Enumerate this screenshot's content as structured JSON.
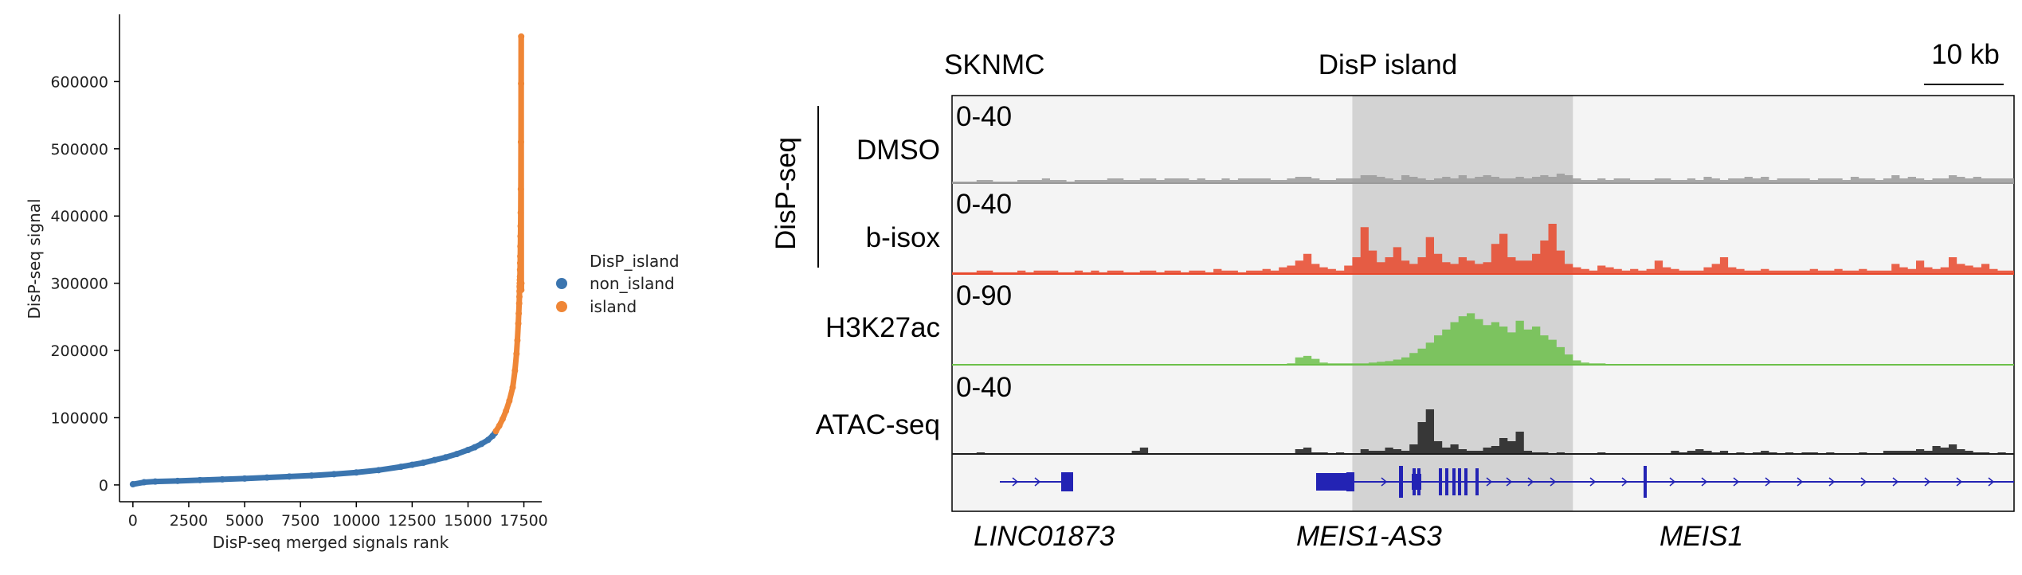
{
  "colors": {
    "non_island": "#3b75af",
    "island": "#ef8636",
    "dmso": "#9a9a9a",
    "bisox": "#e8472a",
    "h3k27ac": "#6cc04a",
    "atac": "#1b1b1b",
    "gene": "#2323b4",
    "island_shade": "#d3d3d3",
    "panel_bg": "#f4f4f4"
  },
  "chart_data": [
    {
      "type": "scatter",
      "xlabel": "DisP-seq merged signals rank",
      "ylabel": "DisP-seq signal",
      "xlim": [
        -600,
        18300
      ],
      "ylim": [
        -25000,
        700000
      ],
      "xticks": [
        0,
        2500,
        5000,
        7500,
        10000,
        12500,
        15000,
        17500
      ],
      "xtick_labels": [
        "0",
        "2500",
        "5000",
        "7500",
        "10000",
        "12500",
        "15000",
        "17500"
      ],
      "yticks": [
        0,
        100000,
        200000,
        300000,
        400000,
        500000,
        600000
      ],
      "ytick_labels": [
        "0",
        "100000",
        "200000",
        "300000",
        "400000",
        "500000",
        "600000"
      ],
      "legend": {
        "title": "DisP_island",
        "placement": "right",
        "entries": [
          "non_island",
          "island"
        ]
      },
      "series": [
        {
          "name": "non_island",
          "x": [
            0,
            500,
            1000,
            2000,
            3000,
            4000,
            5000,
            6000,
            7000,
            8000,
            9000,
            10000,
            11000,
            12000,
            12500,
            13000,
            13500,
            14000,
            14500,
            15000,
            15300,
            15600,
            15900,
            16100,
            16200
          ],
          "y": [
            1000,
            4000,
            5000,
            6000,
            7200,
            8300,
            9500,
            11000,
            12500,
            14000,
            16000,
            18500,
            22000,
            27000,
            30000,
            33000,
            37000,
            41000,
            46000,
            52000,
            56000,
            61000,
            67000,
            73000,
            77000
          ]
        },
        {
          "name": "island",
          "x": [
            16250,
            16400,
            16550,
            16700,
            16850,
            17000,
            17100,
            17170,
            17210,
            17250,
            17270,
            17290,
            17300,
            17305,
            17310,
            17315,
            17320,
            17325,
            17330,
            17335,
            17340,
            17345,
            17350,
            17355,
            17360,
            17365,
            17370,
            17375,
            17380,
            17385,
            17390
          ],
          "y": [
            80000,
            88000,
            98000,
            110000,
            125000,
            145000,
            170000,
            195000,
            215000,
            240000,
            255000,
            270000,
            280000,
            288000,
            295000,
            300000,
            305000,
            310000,
            320000,
            330000,
            340000,
            355000,
            370000,
            385000,
            405000,
            440000,
            510000,
            597000,
            667000,
            290000,
            300000
          ]
        }
      ]
    },
    {
      "type": "area",
      "header": {
        "cell_line": "SKNMC",
        "island_label": "DisP island",
        "scale_label": "10 kb"
      },
      "group_label": "DisP-seq",
      "x_bins": 130,
      "island_region": [
        49,
        76
      ],
      "tracks": [
        {
          "name": "DMSO",
          "range_label": "0-40",
          "max": 40,
          "values": [
            1,
            1,
            1,
            2,
            2,
            1,
            1,
            1,
            2,
            2,
            2,
            3,
            2,
            2,
            1,
            2,
            2,
            2,
            2,
            3,
            3,
            2,
            2,
            3,
            3,
            2,
            3,
            3,
            3,
            2,
            3,
            2,
            2,
            3,
            2,
            3,
            3,
            3,
            3,
            2,
            2,
            3,
            4,
            4,
            3,
            2,
            2,
            3,
            3,
            3,
            5,
            5,
            4,
            3,
            2,
            5,
            4,
            3,
            2,
            3,
            4,
            3,
            5,
            3,
            4,
            5,
            4,
            3,
            3,
            4,
            3,
            4,
            5,
            4,
            6,
            5,
            3,
            2,
            2,
            3,
            2,
            3,
            3,
            2,
            2,
            2,
            3,
            3,
            2,
            2,
            3,
            2,
            4,
            3,
            2,
            3,
            3,
            4,
            3,
            4,
            2,
            3,
            3,
            3,
            3,
            2,
            3,
            3,
            3,
            2,
            4,
            3,
            3,
            2,
            3,
            5,
            3,
            4,
            3,
            2,
            3,
            3,
            5,
            4,
            3,
            4,
            3,
            3,
            3,
            3
          ]
        },
        {
          "name": "b-isox",
          "range_label": "0-40",
          "max": 40,
          "values": [
            1,
            1,
            1,
            2,
            2,
            1,
            1,
            1,
            2,
            1,
            2,
            2,
            2,
            1,
            1,
            2,
            1,
            2,
            1,
            2,
            2,
            1,
            1,
            2,
            2,
            1,
            2,
            2,
            1,
            2,
            2,
            1,
            3,
            2,
            2,
            1,
            2,
            2,
            3,
            2,
            4,
            5,
            8,
            12,
            6,
            4,
            3,
            2,
            5,
            10,
            28,
            14,
            7,
            10,
            16,
            8,
            6,
            10,
            22,
            12,
            7,
            6,
            10,
            8,
            6,
            7,
            18,
            24,
            10,
            8,
            8,
            12,
            20,
            30,
            14,
            6,
            4,
            3,
            2,
            5,
            4,
            3,
            2,
            3,
            2,
            3,
            8,
            4,
            3,
            2,
            2,
            2,
            4,
            6,
            10,
            4,
            3,
            2,
            2,
            3,
            2,
            2,
            2,
            2,
            2,
            3,
            2,
            2,
            3,
            2,
            2,
            3,
            2,
            2,
            2,
            6,
            4,
            3,
            8,
            4,
            3,
            4,
            10,
            6,
            5,
            4,
            6,
            3,
            2,
            2
          ]
        },
        {
          "name": "H3K27ac",
          "range_label": "0-90",
          "max": 90,
          "values": [
            1,
            1,
            1,
            1,
            1,
            1,
            1,
            1,
            1,
            1,
            1,
            1,
            1,
            1,
            1,
            1,
            1,
            1,
            1,
            1,
            1,
            1,
            1,
            1,
            1,
            1,
            1,
            1,
            1,
            1,
            1,
            1,
            1,
            1,
            1,
            1,
            1,
            1,
            1,
            1,
            1,
            2,
            10,
            12,
            8,
            3,
            2,
            2,
            2,
            2,
            2,
            3,
            4,
            5,
            7,
            10,
            16,
            22,
            30,
            40,
            48,
            58,
            66,
            70,
            62,
            54,
            58,
            52,
            44,
            60,
            48,
            52,
            40,
            34,
            24,
            14,
            6,
            3,
            2,
            2,
            1,
            1,
            1,
            1,
            1,
            1,
            1,
            1,
            1,
            1,
            1,
            1,
            1,
            1,
            1,
            1,
            1,
            1,
            1,
            1,
            1,
            1,
            1,
            1,
            1,
            1,
            1,
            1,
            1,
            1,
            1,
            1,
            1,
            1,
            1,
            1,
            1,
            1,
            1,
            1,
            1,
            1,
            1,
            1,
            1,
            1,
            1,
            1,
            1,
            1
          ]
        },
        {
          "name": "ATAC-seq",
          "range_label": "0-40",
          "max": 40,
          "values": [
            0,
            0,
            0,
            1,
            0,
            0,
            0,
            0,
            0,
            0,
            0,
            0,
            0,
            0,
            0,
            0,
            0,
            0,
            0,
            0,
            0,
            0,
            2,
            4,
            0,
            0,
            0,
            0,
            0,
            0,
            0,
            0,
            0,
            0,
            0,
            0,
            0,
            0,
            0,
            0,
            0,
            0,
            3,
            4,
            1,
            1,
            0,
            1,
            0,
            0,
            3,
            2,
            2,
            4,
            3,
            2,
            6,
            20,
            28,
            8,
            4,
            6,
            3,
            2,
            2,
            4,
            5,
            10,
            8,
            14,
            2,
            1,
            1,
            0,
            1,
            0,
            0,
            0,
            0,
            1,
            0,
            0,
            0,
            0,
            0,
            0,
            0,
            0,
            2,
            1,
            2,
            3,
            2,
            1,
            2,
            0,
            1,
            0,
            1,
            2,
            1,
            0,
            1,
            0,
            1,
            1,
            0,
            1,
            0,
            0,
            0,
            1,
            0,
            0,
            2,
            2,
            2,
            2,
            3,
            2,
            5,
            4,
            6,
            3,
            2,
            1,
            1,
            0,
            1,
            0
          ]
        }
      ],
      "genes": [
        "LINC01873",
        "MEIS1-AS3",
        "MEIS1"
      ]
    }
  ]
}
